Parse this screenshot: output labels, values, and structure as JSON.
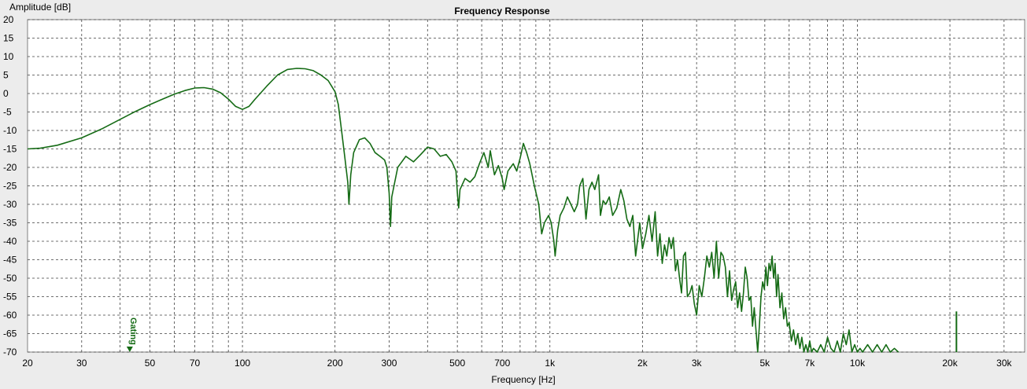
{
  "chart_data": {
    "type": "line",
    "title": "Frequency Response",
    "xlabel": "Frequency [Hz]",
    "ylabel": "Amplitude [dB]",
    "x_scale": "log",
    "xlim": [
      20,
      35000
    ],
    "ylim": [
      -70,
      20
    ],
    "grid": true,
    "line_color": "#156b15",
    "x_ticks": [
      {
        "value": 20,
        "label": "20"
      },
      {
        "value": 30,
        "label": "30"
      },
      {
        "value": 50,
        "label": "50"
      },
      {
        "value": 70,
        "label": "70"
      },
      {
        "value": 100,
        "label": "100"
      },
      {
        "value": 200,
        "label": "200"
      },
      {
        "value": 300,
        "label": "300"
      },
      {
        "value": 500,
        "label": "500"
      },
      {
        "value": 700,
        "label": "700"
      },
      {
        "value": 1000,
        "label": "1k"
      },
      {
        "value": 2000,
        "label": "2k"
      },
      {
        "value": 3000,
        "label": "3k"
      },
      {
        "value": 5000,
        "label": "5k"
      },
      {
        "value": 7000,
        "label": "7k"
      },
      {
        "value": 10000,
        "label": "10k"
      },
      {
        "value": 20000,
        "label": "20k"
      },
      {
        "value": 30000,
        "label": "30k"
      }
    ],
    "y_ticks": [
      20,
      15,
      10,
      5,
      0,
      -5,
      -10,
      -15,
      -20,
      -25,
      -30,
      -35,
      -40,
      -45,
      -50,
      -55,
      -60,
      -65,
      -70
    ],
    "annotation": {
      "label": "Gating",
      "x": 43
    },
    "series": [
      {
        "points": [
          [
            20,
            -15
          ],
          [
            22,
            -14.8
          ],
          [
            25,
            -14
          ],
          [
            30,
            -12
          ],
          [
            35,
            -9.5
          ],
          [
            40,
            -7
          ],
          [
            45,
            -4.8
          ],
          [
            50,
            -3
          ],
          [
            55,
            -1.5
          ],
          [
            60,
            -0.2
          ],
          [
            65,
            0.8
          ],
          [
            70,
            1.5
          ],
          [
            75,
            1.6
          ],
          [
            80,
            1.2
          ],
          [
            85,
            0.2
          ],
          [
            90,
            -1.5
          ],
          [
            95,
            -3.5
          ],
          [
            100,
            -4.3
          ],
          [
            105,
            -3.5
          ],
          [
            110,
            -1.5
          ],
          [
            120,
            2
          ],
          [
            130,
            5
          ],
          [
            140,
            6.5
          ],
          [
            150,
            6.8
          ],
          [
            160,
            6.7
          ],
          [
            170,
            6.2
          ],
          [
            180,
            5
          ],
          [
            190,
            3.5
          ],
          [
            200,
            0.5
          ],
          [
            205,
            -3
          ],
          [
            210,
            -10
          ],
          [
            215,
            -17
          ],
          [
            220,
            -24
          ],
          [
            222,
            -30
          ],
          [
            225,
            -22
          ],
          [
            230,
            -16
          ],
          [
            240,
            -12.5
          ],
          [
            250,
            -12
          ],
          [
            260,
            -13.5
          ],
          [
            270,
            -16
          ],
          [
            280,
            -17
          ],
          [
            290,
            -18
          ],
          [
            295,
            -20
          ],
          [
            300,
            -27
          ],
          [
            303,
            -36
          ],
          [
            306,
            -28
          ],
          [
            320,
            -20
          ],
          [
            340,
            -17
          ],
          [
            360,
            -18.5
          ],
          [
            380,
            -16.5
          ],
          [
            400,
            -14.5
          ],
          [
            420,
            -15
          ],
          [
            440,
            -17
          ],
          [
            460,
            -16.5
          ],
          [
            480,
            -18.5
          ],
          [
            495,
            -21
          ],
          [
            500,
            -27
          ],
          [
            505,
            -31
          ],
          [
            510,
            -26
          ],
          [
            530,
            -23
          ],
          [
            550,
            -24
          ],
          [
            570,
            -22.5
          ],
          [
            590,
            -19
          ],
          [
            610,
            -16
          ],
          [
            630,
            -20
          ],
          [
            640,
            -15.5
          ],
          [
            660,
            -22
          ],
          [
            680,
            -19.5
          ],
          [
            700,
            -23
          ],
          [
            710,
            -26
          ],
          [
            730,
            -21
          ],
          [
            760,
            -19
          ],
          [
            780,
            -21
          ],
          [
            800,
            -17.5
          ],
          [
            820,
            -13.5
          ],
          [
            840,
            -16
          ],
          [
            860,
            -19
          ],
          [
            890,
            -25
          ],
          [
            920,
            -30
          ],
          [
            940,
            -38
          ],
          [
            960,
            -35
          ],
          [
            990,
            -33
          ],
          [
            1010,
            -35
          ],
          [
            1030,
            -40
          ],
          [
            1040,
            -44
          ],
          [
            1060,
            -37
          ],
          [
            1080,
            -33
          ],
          [
            1110,
            -31
          ],
          [
            1140,
            -28
          ],
          [
            1170,
            -30
          ],
          [
            1200,
            -32
          ],
          [
            1230,
            -30
          ],
          [
            1250,
            -25
          ],
          [
            1280,
            -23
          ],
          [
            1310,
            -34
          ],
          [
            1340,
            -26
          ],
          [
            1370,
            -24
          ],
          [
            1400,
            -26
          ],
          [
            1440,
            -22
          ],
          [
            1460,
            -33
          ],
          [
            1490,
            -29
          ],
          [
            1520,
            -30
          ],
          [
            1560,
            -28
          ],
          [
            1600,
            -33
          ],
          [
            1650,
            -31
          ],
          [
            1700,
            -26
          ],
          [
            1740,
            -29
          ],
          [
            1780,
            -34
          ],
          [
            1820,
            -36
          ],
          [
            1860,
            -33
          ],
          [
            1900,
            -44
          ],
          [
            1960,
            -35
          ],
          [
            2000,
            -42
          ],
          [
            2050,
            -38
          ],
          [
            2100,
            -33
          ],
          [
            2150,
            -40
          ],
          [
            2200,
            -32
          ],
          [
            2240,
            -44
          ],
          [
            2280,
            -38
          ],
          [
            2320,
            -46
          ],
          [
            2360,
            -41
          ],
          [
            2400,
            -44
          ],
          [
            2440,
            -39
          ],
          [
            2480,
            -42
          ],
          [
            2520,
            -39
          ],
          [
            2560,
            -48
          ],
          [
            2600,
            -45
          ],
          [
            2640,
            -50
          ],
          [
            2680,
            -54
          ],
          [
            2720,
            -44
          ],
          [
            2760,
            -43
          ],
          [
            2800,
            -55
          ],
          [
            2850,
            -54
          ],
          [
            2900,
            -52
          ],
          [
            2950,
            -57
          ],
          [
            3000,
            -60
          ],
          [
            3060,
            -52
          ],
          [
            3120,
            -55
          ],
          [
            3180,
            -50
          ],
          [
            3240,
            -44
          ],
          [
            3300,
            -47
          ],
          [
            3360,
            -43
          ],
          [
            3420,
            -50
          ],
          [
            3480,
            -40
          ],
          [
            3540,
            -50
          ],
          [
            3600,
            -43
          ],
          [
            3660,
            -44
          ],
          [
            3720,
            -47
          ],
          [
            3780,
            -55
          ],
          [
            3840,
            -48
          ],
          [
            3900,
            -56
          ],
          [
            3960,
            -53
          ],
          [
            4020,
            -51
          ],
          [
            4080,
            -58
          ],
          [
            4140,
            -54
          ],
          [
            4200,
            -59
          ],
          [
            4260,
            -54
          ],
          [
            4320,
            -47
          ],
          [
            4380,
            -50
          ],
          [
            4440,
            -56
          ],
          [
            4500,
            -55
          ],
          [
            4560,
            -63
          ],
          [
            4620,
            -58
          ],
          [
            4680,
            -64
          ],
          [
            4740,
            -70
          ],
          [
            4800,
            -63
          ],
          [
            4860,
            -55
          ],
          [
            4920,
            -51
          ],
          [
            4980,
            -53
          ],
          [
            5040,
            -47
          ],
          [
            5100,
            -52
          ],
          [
            5160,
            -46
          ],
          [
            5220,
            -48
          ],
          [
            5280,
            -44
          ],
          [
            5340,
            -50
          ],
          [
            5400,
            -46
          ],
          [
            5460,
            -55
          ],
          [
            5520,
            -49
          ],
          [
            5600,
            -58
          ],
          [
            5680,
            -54
          ],
          [
            5760,
            -61
          ],
          [
            5840,
            -58
          ],
          [
            5920,
            -63
          ],
          [
            6000,
            -62
          ],
          [
            6100,
            -67
          ],
          [
            6200,
            -64
          ],
          [
            6300,
            -68
          ],
          [
            6400,
            -65
          ],
          [
            6500,
            -69
          ],
          [
            6600,
            -66
          ],
          [
            6700,
            -70
          ],
          [
            6800,
            -68
          ],
          [
            6900,
            -70
          ],
          [
            7000,
            -67
          ],
          [
            7100,
            -70
          ],
          [
            7200,
            -69
          ],
          [
            7400,
            -70
          ],
          [
            7600,
            -68
          ],
          [
            7800,
            -70
          ],
          [
            8000,
            -66
          ],
          [
            8200,
            -69
          ],
          [
            8400,
            -70
          ],
          [
            8600,
            -67
          ],
          [
            8800,
            -70
          ],
          [
            9000,
            -65
          ],
          [
            9200,
            -68
          ],
          [
            9400,
            -64
          ],
          [
            9600,
            -70
          ],
          [
            9800,
            -68
          ],
          [
            10000,
            -70
          ],
          [
            10200,
            -69
          ],
          [
            10400,
            -70
          ],
          [
            10800,
            -68
          ],
          [
            11200,
            -70
          ],
          [
            11600,
            -68
          ],
          [
            12000,
            -70
          ],
          [
            12400,
            -68
          ],
          [
            12800,
            -70
          ],
          [
            13200,
            -69
          ],
          [
            13600,
            -70
          ]
        ]
      }
    ]
  }
}
